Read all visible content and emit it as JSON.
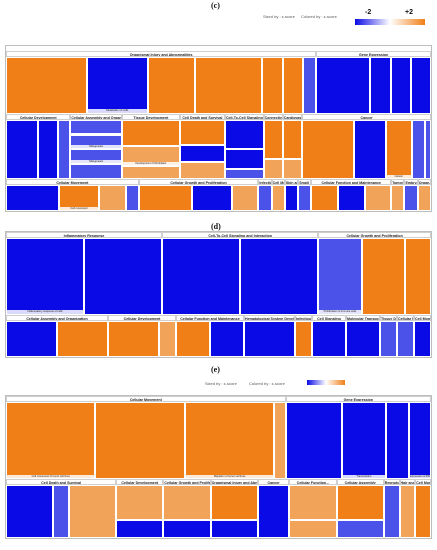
{
  "colors": {
    "pos_strong": "#f07f17",
    "pos_mid": "#f2a35a",
    "pos_light": "#f7cfa6",
    "neg_strong": "#0a0ae6",
    "neg_mid": "#4b52ea",
    "neg_light": "#a7aef3",
    "neutral": "#e9e9ef"
  },
  "panels": {
    "c": {
      "label": "(c)",
      "legend": {
        "sized": "Sized by : z-score",
        "colored": "Colored by : z-score",
        "min": "-2",
        "max": "+2"
      }
    },
    "d": {
      "label": "(d)"
    },
    "e": {
      "label": "(e)",
      "legend": {
        "sized": "Sized by : z-score",
        "colored": "Colored by : z-score"
      }
    }
  },
  "chart_data": [
    {
      "panel": "c",
      "type": "treemap",
      "color_scale": {
        "metric": "z-score",
        "min": -2,
        "max": 2
      },
      "groups": [
        {
          "name": "Organismal Injury and Abnormalities",
          "tiles": [
            {
              "label": "",
              "z": 2,
              "size": 12
            },
            {
              "label": "Metabolism of cells",
              "z": -2,
              "size": 9
            },
            {
              "label": "",
              "z": 2,
              "size": 7
            },
            {
              "label": "",
              "z": 2,
              "size": 10
            },
            {
              "label": "",
              "z": 2,
              "size": 3
            },
            {
              "label": "",
              "z": 2,
              "size": 3
            },
            {
              "label": "",
              "z": -1,
              "size": 2
            }
          ]
        },
        {
          "name": "Gene Expression",
          "tiles": [
            {
              "label": "",
              "z": -2,
              "size": 8
            },
            {
              "label": "",
              "z": -2,
              "size": 3
            },
            {
              "label": "",
              "z": -2,
              "size": 3
            },
            {
              "label": "",
              "z": -2,
              "size": 3
            }
          ]
        },
        {
          "name": "Cellular Development",
          "tiles": [
            {
              "label": "",
              "z": -2,
              "size": 5
            },
            {
              "label": "",
              "z": -2,
              "size": 3
            },
            {
              "label": "",
              "z": -1,
              "size": 2
            }
          ]
        },
        {
          "name": "Cellular Assembly and Organiz...",
          "tiles": [
            {
              "label": "",
              "z": -1,
              "size": 2
            },
            {
              "label": "Mitogenesis",
              "z": -1,
              "size": 2
            },
            {
              "label": "Mitogenesis",
              "z": -1,
              "size": 2
            },
            {
              "label": "",
              "z": -1,
              "size": 2
            }
          ]
        },
        {
          "name": "Tissue Development",
          "tiles": [
            {
              "label": "",
              "z": 2,
              "size": 4
            },
            {
              "label": "Development of fibroblasts",
              "z": 1,
              "size": 3
            },
            {
              "label": "",
              "z": 1,
              "size": 2
            }
          ]
        },
        {
          "name": "Cell Death and Survival",
          "tiles": [
            {
              "label": "",
              "z": 2,
              "size": 3
            },
            {
              "label": "",
              "z": -2,
              "size": 2
            },
            {
              "label": "",
              "z": 1,
              "size": 2
            }
          ]
        },
        {
          "name": "Cell-To-Cell Signaling and Interaction",
          "tiles": [
            {
              "label": "",
              "z": -2,
              "size": 3
            },
            {
              "label": "",
              "z": -2,
              "size": 2
            },
            {
              "label": "",
              "z": -1,
              "size": 1
            }
          ]
        },
        {
          "name": "Connective Tissue Develo...",
          "tiles": [
            {
              "label": "",
              "z": 2,
              "size": 2
            },
            {
              "label": "",
              "z": 1,
              "size": 1
            }
          ]
        },
        {
          "name": "Cardiovascular Syst...",
          "tiles": [
            {
              "label": "",
              "z": 2,
              "size": 2
            },
            {
              "label": "",
              "z": 1,
              "size": 1
            }
          ]
        },
        {
          "name": "Cancer",
          "tiles": [
            {
              "label": "",
              "z": 2,
              "size": 8
            },
            {
              "label": "",
              "z": -2,
              "size": 5
            },
            {
              "label": "Cancer",
              "z": 2,
              "size": 4
            },
            {
              "label": "",
              "z": -1,
              "size": 2
            },
            {
              "label": "",
              "z": -1,
              "size": 1
            }
          ]
        },
        {
          "name": "Cellular Movement",
          "tiles": [
            {
              "label": "",
              "z": -2,
              "size": 4
            },
            {
              "label": "Cell movement",
              "z": 2,
              "size": 3
            },
            {
              "label": "",
              "z": 1,
              "size": 2
            },
            {
              "label": "",
              "z": -1,
              "size": 1
            }
          ]
        },
        {
          "name": "Cellular Growth and Proliferation",
          "tiles": [
            {
              "label": "",
              "z": 2,
              "size": 4
            },
            {
              "label": "",
              "z": -2,
              "size": 3
            },
            {
              "label": "",
              "z": 1,
              "size": 2
            }
          ]
        },
        {
          "name": "Infectious Dis...",
          "tiles": [
            {
              "label": "",
              "z": -1,
              "size": 1
            }
          ]
        },
        {
          "name": "Cell Morphology",
          "tiles": [
            {
              "label": "",
              "z": 1,
              "size": 1
            }
          ]
        },
        {
          "name": "Skin and Ske...",
          "tiles": [
            {
              "label": "",
              "z": -2,
              "size": 1
            }
          ]
        },
        {
          "name": "Small Molec...",
          "tiles": [
            {
              "label": "",
              "z": -1,
              "size": 1
            }
          ]
        },
        {
          "name": "Cellular Function and Maintenance",
          "tiles": [
            {
              "label": "",
              "z": 2,
              "size": 2
            },
            {
              "label": "",
              "z": -2,
              "size": 2
            },
            {
              "label": "",
              "z": 1,
              "size": 2
            }
          ]
        },
        {
          "name": "Tumor Morpho...",
          "tiles": [
            {
              "label": "",
              "z": 1,
              "size": 1
            }
          ]
        },
        {
          "name": "Embry...",
          "tiles": [
            {
              "label": "",
              "z": -1,
              "size": 1
            }
          ]
        },
        {
          "name": "Organ...",
          "tiles": [
            {
              "label": "",
              "z": 1,
              "size": 1
            }
          ]
        }
      ]
    },
    {
      "panel": "d",
      "type": "treemap",
      "color_scale": {
        "metric": "z-score",
        "min": -2,
        "max": 2
      },
      "groups": [
        {
          "name": "Inflammatory Response",
          "tiles": [
            {
              "label": "Inflammatory response of cells",
              "z": -2,
              "size": 9
            },
            {
              "label": "",
              "z": -2,
              "size": 9
            }
          ]
        },
        {
          "name": "Cell-To-Cell Signaling and Interaction",
          "tiles": [
            {
              "label": "",
              "z": -2,
              "size": 9
            },
            {
              "label": "",
              "z": -2,
              "size": 9
            }
          ]
        },
        {
          "name": "Cellular Growth and Proliferation",
          "tiles": [
            {
              "label": "Proliferation of immune cells",
              "z": -1,
              "size": 5
            },
            {
              "label": "",
              "z": 2,
              "size": 5
            },
            {
              "label": "",
              "z": 2,
              "size": 3
            }
          ]
        },
        {
          "name": "Cellular Assembly and Organization",
          "tiles": [
            {
              "label": "",
              "z": -2,
              "size": 3
            },
            {
              "label": "",
              "z": 2,
              "size": 3
            }
          ]
        },
        {
          "name": "Cellular Development",
          "tiles": [
            {
              "label": "",
              "z": 2,
              "size": 3
            },
            {
              "label": "",
              "z": 1,
              "size": 1
            }
          ]
        },
        {
          "name": "Cellular Function and Maintenance",
          "tiles": [
            {
              "label": "",
              "z": 2,
              "size": 2
            },
            {
              "label": "",
              "z": -2,
              "size": 2
            }
          ]
        },
        {
          "name": "Hematological System Development and Function",
          "tiles": [
            {
              "label": "",
              "z": -2,
              "size": 3
            }
          ]
        },
        {
          "name": "Infectious and Skeletal Remodeling",
          "tiles": [
            {
              "label": "",
              "z": 2,
              "size": 1
            }
          ]
        },
        {
          "name": "Cell Signaling",
          "tiles": [
            {
              "label": "",
              "z": -2,
              "size": 2
            }
          ]
        },
        {
          "name": "Molecular Transport",
          "tiles": [
            {
              "label": "",
              "z": -2,
              "size": 2
            }
          ]
        },
        {
          "name": "Tissue Development",
          "tiles": [
            {
              "label": "",
              "z": -1,
              "size": 1
            }
          ]
        },
        {
          "name": "Cellular Movement",
          "tiles": [
            {
              "label": "",
              "z": -1,
              "size": 1
            }
          ]
        },
        {
          "name": "Cell Morphology",
          "tiles": [
            {
              "label": "",
              "z": -2,
              "size": 1
            }
          ]
        }
      ]
    },
    {
      "panel": "e",
      "type": "treemap",
      "color_scale": {
        "metric": "z-score",
        "min": -2,
        "max": 2
      },
      "groups": [
        {
          "name": "Cellular Movement",
          "tiles": [
            {
              "label": "Cell movement of tumor cell lines",
              "z": 2,
              "size": 8
            },
            {
              "label": "",
              "z": 2,
              "size": 8
            },
            {
              "label": "Migration of tumor cell lines",
              "z": 2,
              "size": 8
            },
            {
              "label": "",
              "z": 1,
              "size": 1
            }
          ]
        },
        {
          "name": "Gene Expression",
          "tiles": [
            {
              "label": "",
              "z": -2,
              "size": 5
            },
            {
              "label": "Transcription",
              "z": -2,
              "size": 4
            },
            {
              "label": "",
              "z": -2,
              "size": 2
            },
            {
              "label": "Expression of RNA",
              "z": -2,
              "size": 2
            }
          ]
        },
        {
          "name": "Cell Death and Survival",
          "tiles": [
            {
              "label": "",
              "z": -2,
              "size": 3
            },
            {
              "label": "",
              "z": -1,
              "size": 1
            },
            {
              "label": "",
              "z": 1,
              "size": 3
            }
          ]
        },
        {
          "name": "Cellular Development",
          "tiles": [
            {
              "label": "",
              "z": 1,
              "size": 2
            },
            {
              "label": "",
              "z": -2,
              "size": 1
            }
          ]
        },
        {
          "name": "Cellular Growth and Proliferation",
          "tiles": [
            {
              "label": "",
              "z": 1,
              "size": 2
            },
            {
              "label": "",
              "z": -2,
              "size": 1
            }
          ]
        },
        {
          "name": "Organismal Injury and Abnormalities",
          "tiles": [
            {
              "label": "",
              "z": 2,
              "size": 2
            },
            {
              "label": "",
              "z": -2,
              "size": 1
            }
          ]
        },
        {
          "name": "Cancer",
          "tiles": [
            {
              "label": "",
              "z": -2,
              "size": 2
            }
          ]
        },
        {
          "name": "Cellular Function...",
          "tiles": [
            {
              "label": "",
              "z": 1,
              "size": 2
            },
            {
              "label": "",
              "z": 1,
              "size": 1
            }
          ]
        },
        {
          "name": "Cellular Assembly",
          "tiles": [
            {
              "label": "",
              "z": 2,
              "size": 2
            },
            {
              "label": "",
              "z": -1,
              "size": 1
            }
          ]
        },
        {
          "name": "Reproductive Syst...",
          "tiles": [
            {
              "label": "",
              "z": -1,
              "size": 1
            }
          ]
        },
        {
          "name": "Hair and S...",
          "tiles": [
            {
              "label": "",
              "z": 1,
              "size": 1
            }
          ]
        },
        {
          "name": "Cell Morphology",
          "tiles": [
            {
              "label": "",
              "z": 2,
              "size": 1
            }
          ]
        }
      ]
    }
  ]
}
